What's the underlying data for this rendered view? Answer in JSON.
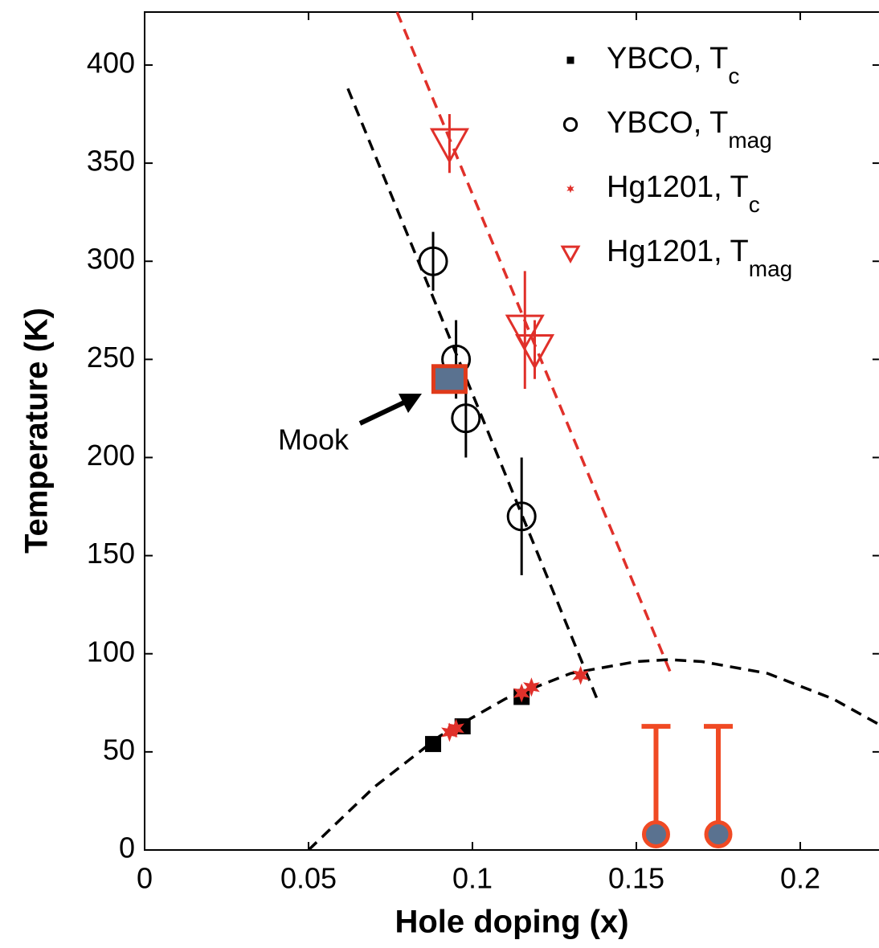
{
  "chart_data": {
    "type": "scatter",
    "xlabel": "Hole doping (x)",
    "ylabel": "Temperature (K)",
    "xlim": [
      0,
      0.224
    ],
    "ylim": [
      0,
      427
    ],
    "xticks": [
      0,
      0.05,
      0.1,
      0.15,
      0.2
    ],
    "yticks": [
      0,
      50,
      100,
      150,
      200,
      250,
      300,
      350,
      400
    ],
    "series": [
      {
        "name": "YBCO, T",
        "name_sub": "c",
        "marker": "square",
        "color": "#000000",
        "x": [
          0.088,
          0.097,
          0.115
        ],
        "values": [
          54,
          63,
          78
        ]
      },
      {
        "name": "YBCO, T",
        "name_sub": "mag",
        "marker": "circle",
        "color": "#000000",
        "x": [
          0.088,
          0.095,
          0.098,
          0.115
        ],
        "values": [
          300,
          250,
          220,
          170
        ],
        "err": [
          15,
          20,
          20,
          30
        ]
      },
      {
        "name": "Hg1201, T",
        "name_sub": "c",
        "marker": "star",
        "color": "#e0302a",
        "x": [
          0.093,
          0.095,
          0.115,
          0.118,
          0.133
        ],
        "values": [
          60,
          62,
          80,
          83,
          89
        ]
      },
      {
        "name": "Hg1201, T",
        "name_sub": "mag",
        "marker": "triangle",
        "color": "#e0302a",
        "x": [
          0.093,
          0.116,
          0.119
        ],
        "values": [
          360,
          265,
          255
        ],
        "err": [
          15,
          30,
          15
        ]
      }
    ],
    "fits": [
      {
        "color": "#000000",
        "x": [
          0.062,
          0.138
        ],
        "values": [
          388,
          77
        ]
      },
      {
        "color": "#e0302a",
        "x": [
          0.077,
          0.161
        ],
        "values": [
          427,
          88
        ]
      },
      {
        "color": "#000000",
        "x": [
          0.05,
          0.07,
          0.09,
          0.11,
          0.13,
          0.15,
          0.16,
          0.17,
          0.19,
          0.21,
          0.224
        ],
        "values": [
          0,
          32,
          58,
          77,
          90,
          96,
          97,
          96,
          90,
          77,
          64
        ]
      }
    ],
    "mook": {
      "label": "Mook",
      "x": 0.093,
      "y": 240,
      "fill": "#5a7290",
      "edge": "#e03a1a"
    },
    "extra_points": {
      "color": "#f04a24",
      "fill": "#5a7290",
      "x": [
        0.156,
        0.175
      ],
      "values": [
        8,
        8
      ],
      "upper": [
        63,
        63
      ]
    }
  }
}
